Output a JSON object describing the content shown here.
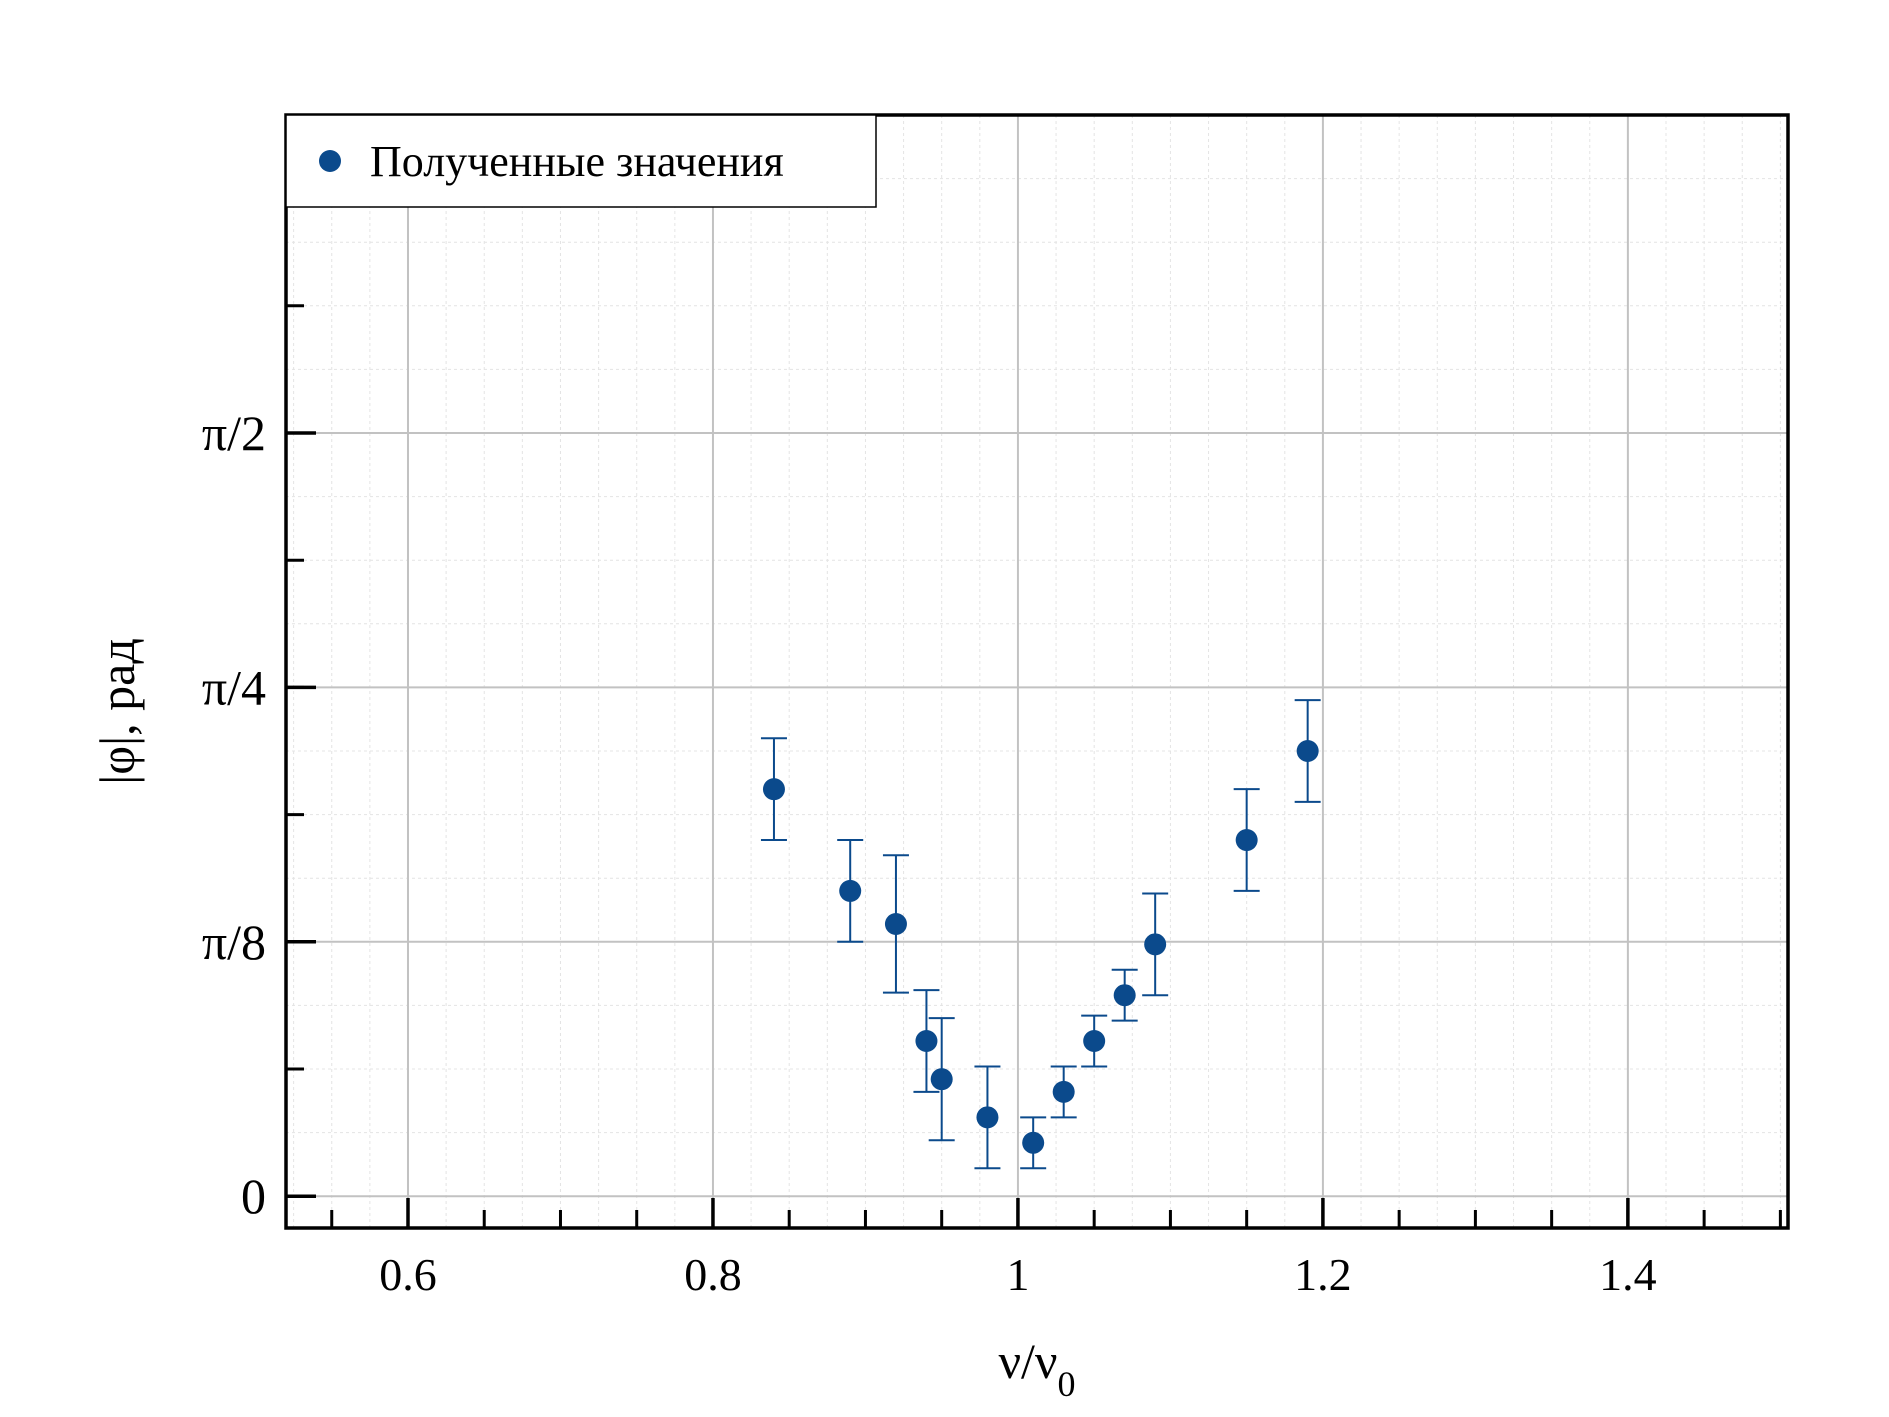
{
  "chart_data": {
    "type": "scatter",
    "xlabel": "ν/ν",
    "xlabel_subscript": "0",
    "ylabel": "|φ|, рад",
    "xlim": [
      0.52,
      1.505
    ],
    "ylim": [
      -0.0625,
      2.125
    ],
    "x_ticks": [
      {
        "value": 0.6,
        "label": "0.6"
      },
      {
        "value": 0.8,
        "label": "0.8"
      },
      {
        "value": 1.0,
        "label": "1"
      },
      {
        "value": 1.2,
        "label": "1.2"
      },
      {
        "value": 1.4,
        "label": "1.4"
      }
    ],
    "y_ticks": [
      {
        "value": 0,
        "label": "0"
      },
      {
        "value": 0.5,
        "label": "π/8"
      },
      {
        "value": 1.0,
        "label": "π/4"
      },
      {
        "value": 1.5,
        "label": "π/2"
      }
    ],
    "y_tick_note": "y-axis value 1 unit = one labeled step; labels printed as shown",
    "grid": true,
    "legend_position": "top-left",
    "series": [
      {
        "name": "Полученные значения",
        "color": "#0b4a8c",
        "points": [
          {
            "x": 0.84,
            "y": 0.8,
            "err": 0.1
          },
          {
            "x": 0.89,
            "y": 0.6,
            "err": 0.1
          },
          {
            "x": 0.92,
            "y": 0.535,
            "err": 0.135
          },
          {
            "x": 0.94,
            "y": 0.305,
            "err": 0.1
          },
          {
            "x": 0.95,
            "y": 0.23,
            "err": 0.12
          },
          {
            "x": 0.98,
            "y": 0.155,
            "err": 0.1
          },
          {
            "x": 1.01,
            "y": 0.105,
            "err": 0.05
          },
          {
            "x": 1.03,
            "y": 0.205,
            "err": 0.05
          },
          {
            "x": 1.05,
            "y": 0.305,
            "err": 0.05
          },
          {
            "x": 1.07,
            "y": 0.395,
            "err": 0.05
          },
          {
            "x": 1.09,
            "y": 0.495,
            "err": 0.1
          },
          {
            "x": 1.15,
            "y": 0.7,
            "err": 0.1
          },
          {
            "x": 1.19,
            "y": 0.875,
            "err": 0.1
          }
        ]
      }
    ]
  }
}
